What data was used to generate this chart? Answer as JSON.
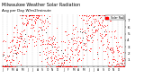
{
  "title": "Milwaukee Weather Solar Radiation",
  "subtitle": "Avg per Day W/m2/minute",
  "legend_label": "Solar Rad",
  "legend_color": "#ff0000",
  "bg_color": "#ffffff",
  "plot_bg": "#ffffff",
  "grid_color": "#b0b0b0",
  "dot_color_red": "#ff0000",
  "dot_color_black": "#000000",
  "ylim": [
    0,
    8
  ],
  "yticks": [
    1,
    2,
    3,
    4,
    5,
    6,
    7
  ],
  "ylabel_fontsize": 3.0,
  "title_fontsize": 3.5,
  "noise_scale": 2.2,
  "n_days": 730,
  "seed": 42
}
